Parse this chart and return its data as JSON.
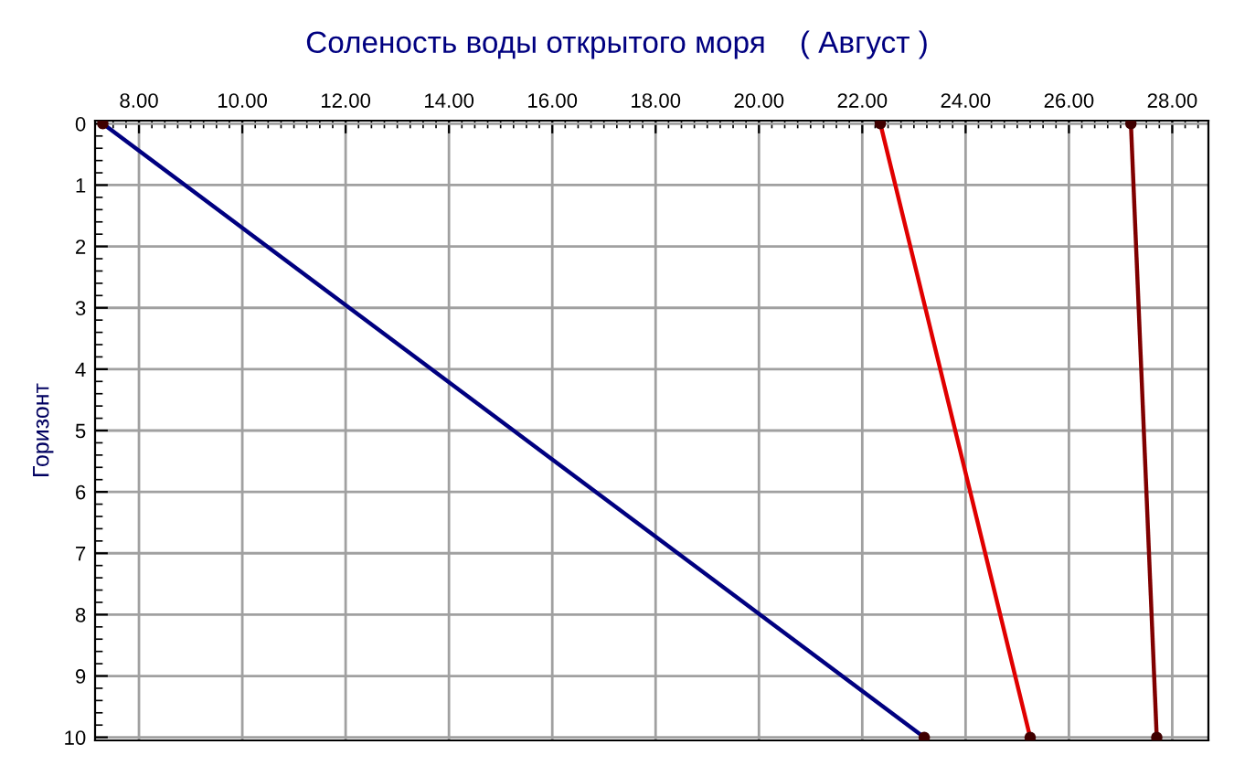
{
  "chart_data": {
    "type": "line",
    "title": "Соленость воды открытого моря    ( Август )",
    "ylabel": "Горизонт",
    "series": [
      {
        "color": "#000080",
        "x": [
          7.3,
          23.2
        ],
        "values": [
          0,
          10
        ]
      },
      {
        "color": "#e00000",
        "x": [
          22.35,
          25.25
        ],
        "values": [
          0,
          10
        ]
      },
      {
        "color": "#800000",
        "x": [
          27.2,
          27.7
        ],
        "values": [
          0,
          10
        ]
      }
    ],
    "xlim": [
      7.15,
      28.7
    ],
    "xticks": [
      {
        "value": 8,
        "label": "8.00"
      },
      {
        "value": 10,
        "label": "10.00"
      },
      {
        "value": 12,
        "label": "12.00"
      },
      {
        "value": 14,
        "label": "14.00"
      },
      {
        "value": 16,
        "label": "16.00"
      },
      {
        "value": 18,
        "label": "18.00"
      },
      {
        "value": 20,
        "label": "20.00"
      },
      {
        "value": 22,
        "label": "22.00"
      },
      {
        "value": 24,
        "label": "24.00"
      },
      {
        "value": 26,
        "label": "26.00"
      },
      {
        "value": 28,
        "label": "28.00"
      }
    ],
    "ylim": [
      10.05,
      -0.05
    ],
    "yticks": [
      0,
      1,
      2,
      3,
      4,
      5,
      6,
      7,
      8,
      9,
      10
    ],
    "grid": true,
    "marker": "circle",
    "line_style": "solid"
  }
}
